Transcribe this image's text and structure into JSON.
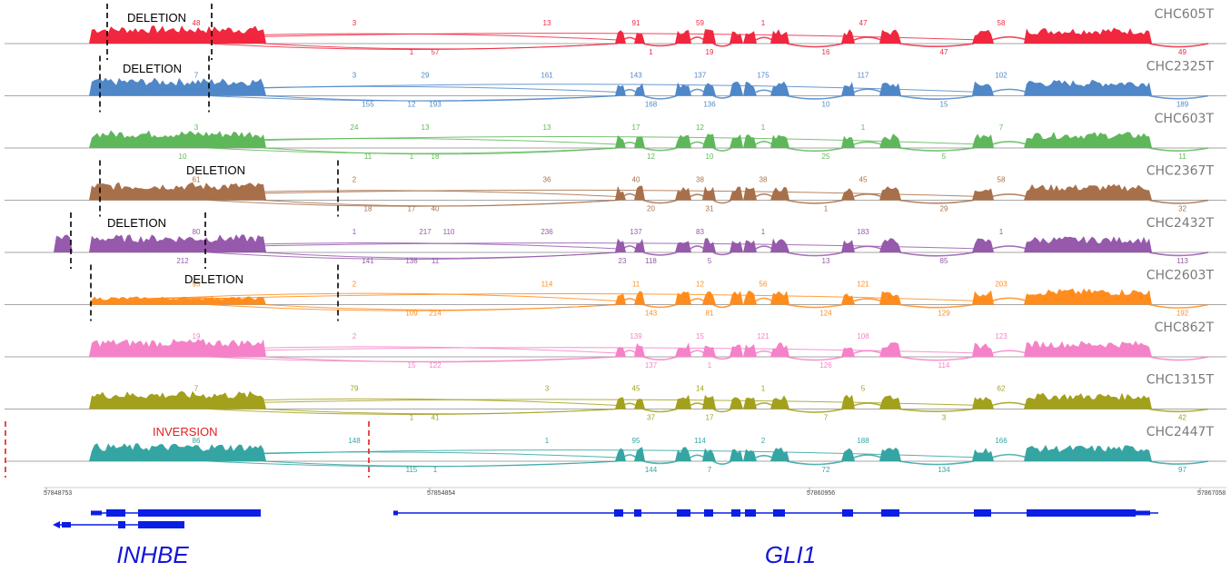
{
  "tracks": [
    {
      "name": "CHC605T",
      "color": "#f0273f",
      "junction_labels": [
        "3",
        "1",
        "48",
        "57",
        "91",
        "1",
        "59",
        "19",
        "1",
        "16",
        "47",
        "47",
        "58",
        "49",
        "13"
      ],
      "annotation": {
        "text": "DELETION",
        "color": "#000000"
      }
    },
    {
      "name": "CHC2325T",
      "color": "#4f87c8",
      "junction_labels": [
        "3",
        "12",
        "7",
        "193",
        "143",
        "168",
        "137",
        "136",
        "175",
        "10",
        "117",
        "15",
        "102",
        "189",
        "161",
        "155",
        "29"
      ],
      "annotation": {
        "text": "DELETION",
        "color": "#000000"
      }
    },
    {
      "name": "CHC603T",
      "color": "#5eb85a",
      "junction_labels": [
        "24",
        "1",
        "3",
        "18",
        "17",
        "12",
        "12",
        "10",
        "1",
        "25",
        "1",
        "5",
        "7",
        "11",
        "13",
        "11",
        "13",
        "10"
      ],
      "annotation": null
    },
    {
      "name": "CHC2367T",
      "color": "#a8704a",
      "junction_labels": [
        "2",
        "17",
        "61",
        "40",
        "40",
        "20",
        "38",
        "31",
        "38",
        "1",
        "45",
        "29",
        "58",
        "32",
        "36",
        "18"
      ],
      "annotation": {
        "text": "DELETION",
        "color": "#000000"
      }
    },
    {
      "name": "CHC2432T",
      "color": "#9659ab",
      "junction_labels": [
        "1",
        "136",
        "80",
        "11",
        "137",
        "118",
        "83",
        "5",
        "1",
        "13",
        "183",
        "85",
        "1",
        "113",
        "236",
        "141",
        "217",
        "212",
        "110",
        "23"
      ],
      "annotation": {
        "text": "DELETION",
        "color": "#000000"
      }
    },
    {
      "name": "CHC2603T",
      "color": "#ff8c1c",
      "junction_labels": [
        "2",
        "109",
        "95",
        "214",
        "11",
        "143",
        "12",
        "81",
        "56",
        "124",
        "121",
        "129",
        "203",
        "192",
        "114"
      ],
      "annotation": {
        "text": "DELETION",
        "color": "#000000"
      }
    },
    {
      "name": "CHC862T",
      "color": "#f582c8",
      "junction_labels": [
        "2",
        "15",
        "19",
        "122",
        "139",
        "137",
        "15",
        "1",
        "121",
        "126",
        "108",
        "114",
        "123"
      ],
      "annotation": null
    },
    {
      "name": "CHC1315T",
      "color": "#a3a01c",
      "junction_labels": [
        "79",
        "1",
        "7",
        "41",
        "45",
        "37",
        "14",
        "17",
        "1",
        "7",
        "5",
        "3",
        "62",
        "42",
        "3"
      ],
      "annotation": null
    },
    {
      "name": "CHC2447T",
      "color": "#35a5a3",
      "junction_labels": [
        "148",
        "115",
        "86",
        "1",
        "95",
        "144",
        "114",
        "7",
        "2",
        "72",
        "188",
        "134",
        "166",
        "97",
        "1"
      ],
      "annotation": {
        "text": "INVERSION",
        "color": "#e02020"
      }
    }
  ],
  "coordinates": [
    "57848753",
    "57854854",
    "57860956",
    "57867058"
  ],
  "genes": [
    {
      "name": "INHBE"
    },
    {
      "name": "GLI1"
    }
  ]
}
